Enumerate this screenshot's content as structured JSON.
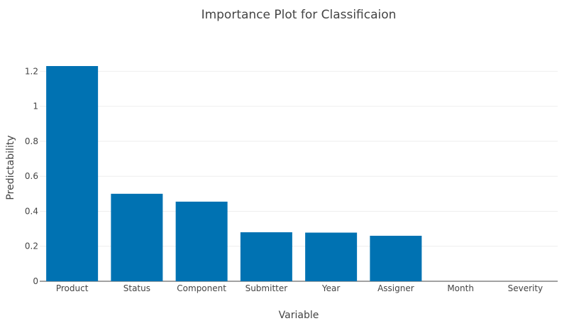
{
  "chart_data": {
    "type": "bar",
    "title": "Importance Plot for Classificaion",
    "xlabel": "Variable",
    "ylabel": "Predictability",
    "categories": [
      "Product",
      "Status",
      "Component",
      "Submitter",
      "Year",
      "Assigner",
      "Month",
      "Severity"
    ],
    "values": [
      1.23,
      0.5,
      0.455,
      0.28,
      0.278,
      0.26,
      0,
      0
    ],
    "ylim": [
      0,
      1.23
    ],
    "yticks": [
      0,
      0.2,
      0.4,
      0.6,
      0.8,
      1,
      1.2
    ],
    "ytick_labels": [
      "0",
      "0.2",
      "0.4",
      "0.6",
      "0.8",
      "1",
      "1.2"
    ],
    "grid": true,
    "bar_color": "#0072b2"
  }
}
